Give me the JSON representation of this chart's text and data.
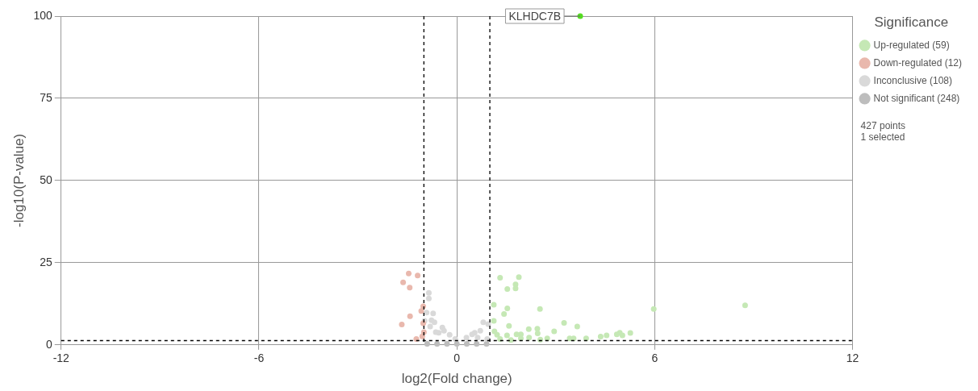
{
  "chart_data": {
    "type": "scatter",
    "xlabel": "log2(Fold change)",
    "ylabel": "-log10(P-value)",
    "legend_title": "Significance",
    "legend": "right",
    "grid": true,
    "marker": "circle",
    "xlim": [
      -12,
      12
    ],
    "xticks": [
      -12,
      -6,
      0,
      6,
      12
    ],
    "ylim": [
      0,
      100
    ],
    "yticks": [
      0,
      25,
      50,
      75,
      100
    ],
    "ref_lines": [
      {
        "axis": "x",
        "value": -1,
        "color": "#000000",
        "line_style": "dashed"
      },
      {
        "axis": "x",
        "value": 1,
        "color": "#000000",
        "line_style": "dashed"
      },
      {
        "axis": "y",
        "value": 1.3,
        "color": "#000000",
        "line_style": "dashed"
      }
    ],
    "annotations": [
      {
        "text": "KLHDC7B",
        "x": 3.74,
        "y": 100
      },
      "427 points",
      "1 selected"
    ],
    "series": [
      {
        "name": "Up-regulated (59)",
        "color": "#c5e8b5",
        "x": [
          1.31,
          1.88,
          1.53,
          1.78,
          1.78,
          1.12,
          1.53,
          1.43,
          2.52,
          1.12,
          1.58,
          5.97,
          8.74,
          3.25,
          3.65,
          2.18,
          2.44,
          2.45,
          2.95,
          5.26,
          4.94,
          4.85,
          4.54,
          4.36,
          5.02,
          3.92,
          3.42,
          3.54,
          2.74,
          2.53,
          2.19,
          1.94,
          1.81,
          1.52,
          1.22,
          1.14,
          1.64,
          1.94,
          1.31
        ],
        "values": [
          20.4,
          20.6,
          17.0,
          18.4,
          17.2,
          12.2,
          11.1,
          9.4,
          10.9,
          7.3,
          5.8,
          10.9,
          12.0,
          6.7,
          5.6,
          4.8,
          4.9,
          3.5,
          4.1,
          3.6,
          3.7,
          3.2,
          2.9,
          2.5,
          2.9,
          2.0,
          2.0,
          2.0,
          2.0,
          1.6,
          2.2,
          3.2,
          3.2,
          2.9,
          3.1,
          4.1,
          1.5,
          2.0,
          1.8
        ]
      },
      {
        "name": "Down-regulated (12)",
        "color": "#e9b8ad",
        "x": [
          -1.46,
          -1.19,
          -1.63,
          -1.43,
          -1.08,
          -1.02,
          -1.42,
          -1.67,
          -1.02,
          -1.0,
          -1.23,
          -1.05
        ],
        "values": [
          21.7,
          21.1,
          19.0,
          17.4,
          10.3,
          11.7,
          8.7,
          6.2,
          6.6,
          3.9,
          1.8,
          2.6
        ]
      },
      {
        "name": "Inconclusive (108)",
        "color": "#d9d9d9",
        "x": [
          -0.85,
          -0.85,
          -0.72,
          -0.92,
          -0.77,
          -0.68,
          -0.44,
          -0.39,
          -0.22,
          -0.55,
          -0.05,
          0.29,
          0.54,
          0.8,
          0.95,
          0.71,
          0.46,
          -0.98,
          -0.81,
          -0.64,
          0.92,
          0.63
        ],
        "values": [
          15.8,
          14.1,
          9.6,
          9.8,
          7.5,
          6.9,
          5.3,
          4.3,
          3.1,
          3.7,
          1.8,
          2.2,
          3.7,
          6.9,
          6.3,
          4.3,
          3.2,
          7.3,
          5.6,
          3.9,
          1.8,
          2.2
        ]
      },
      {
        "name": "Not significant (248)",
        "color": "#bdbdbd",
        "x": [
          -0.9,
          -0.6,
          -0.3,
          0,
          0.3,
          0.6,
          0.9
        ],
        "values": [
          0.3,
          0.3,
          0.3,
          0.3,
          0.3,
          0.3,
          0.3
        ]
      },
      {
        "color": "#55dd22",
        "x": [
          3.74
        ],
        "values": [
          100
        ]
      }
    ]
  }
}
